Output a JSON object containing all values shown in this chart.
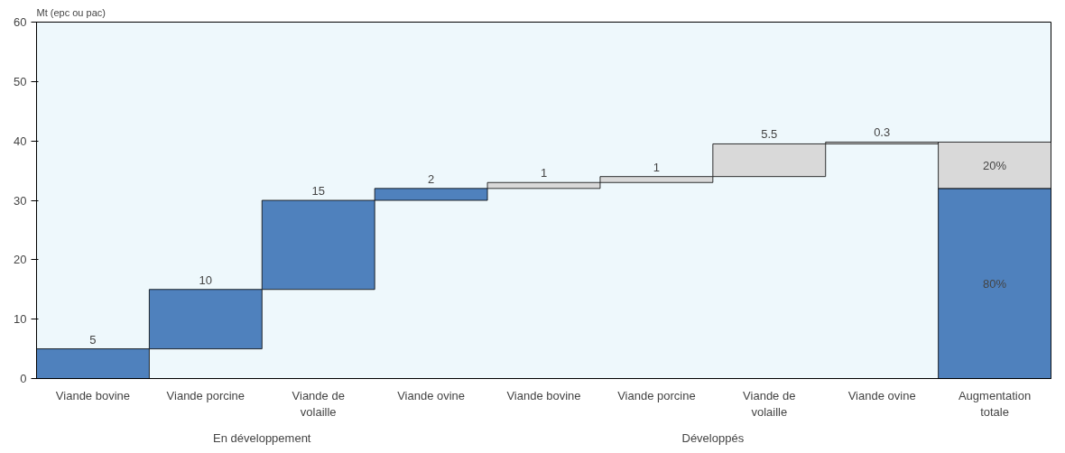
{
  "chart_data": {
    "type": "bar",
    "ylabel": "Mt (epc ou pac)",
    "categories": [
      "Viande bovine",
      "Viande porcine",
      "Viande de volaille",
      "Viande ovine",
      "Viande bovine",
      "Viande porcine",
      "Viande de volaille",
      "Viande ovine",
      "Augmentation totale"
    ],
    "series": [
      {
        "color": "#4f81bd",
        "values": [
          5,
          10,
          15,
          2,
          null,
          null,
          null,
          null,
          32
        ],
        "base": [
          0,
          5,
          15,
          30,
          null,
          null,
          null,
          null,
          0
        ],
        "value_labels": [
          "5",
          "10",
          "15",
          "2",
          null,
          null,
          null,
          null,
          null
        ]
      },
      {
        "color": "#d9d9d9",
        "values": [
          null,
          null,
          null,
          null,
          1,
          1,
          5.5,
          0.3,
          7.8
        ],
        "base": [
          null,
          null,
          null,
          null,
          32,
          33,
          34,
          39.5,
          32
        ],
        "value_labels": [
          null,
          null,
          null,
          null,
          "1",
          "1",
          "5.5",
          "0.3",
          null
        ]
      }
    ],
    "ylim": [
      0,
      60
    ],
    "yticks": [
      0,
      10,
      20,
      30,
      40,
      50,
      60
    ],
    "grid": false,
    "annotations": [
      "En développement",
      "Développés",
      "80%",
      "20%"
    ]
  }
}
